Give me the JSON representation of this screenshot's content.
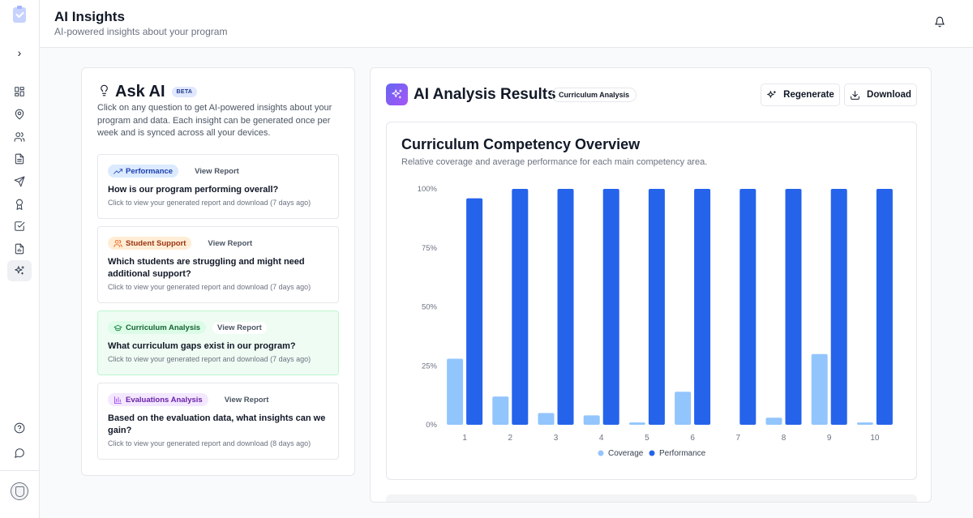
{
  "header": {
    "title": "AI Insights",
    "subtitle": "AI-powered insights about your program"
  },
  "sidebar": {
    "icons": [
      "grid-icon",
      "map-pin-icon",
      "users-icon",
      "file-text-icon",
      "send-icon",
      "award-icon",
      "check-square-icon",
      "file-chart-icon",
      "sparkles-icon"
    ],
    "active": "sparkles-icon"
  },
  "ask": {
    "title": "Ask AI",
    "badge": "BETA",
    "description": "Click on any question to get AI-powered insights about your program and data. Each insight can be generated once per week and is synced across all your devices.",
    "view_report_label": "View Report",
    "cards": [
      {
        "tag": "Performance",
        "question": "How is our program performing overall?",
        "sub": "Click to view your generated report and download (7 days ago)"
      },
      {
        "tag": "Student Support",
        "question": "Which students are struggling and might need additional support?",
        "sub": "Click to view your generated report and download (7 days ago)"
      },
      {
        "tag": "Curriculum Analysis",
        "question": "What curriculum gaps exist in our program?",
        "sub": "Click to view your generated report and download (7 days ago)"
      },
      {
        "tag": "Evaluations Analysis",
        "question": "Based on the evaluation data, what insights can we gain?",
        "sub": "Click to view your generated report and download (8 days ago)"
      }
    ]
  },
  "results": {
    "title": "AI Analysis Results",
    "badge": "Curriculum Analysis",
    "regenerate_label": "Regenerate",
    "download_label": "Download"
  },
  "chart_data": {
    "type": "bar",
    "title": "Curriculum Competency Overview",
    "subtitle": "Relative coverage and average performance for each main competency area.",
    "categories": [
      "1",
      "2",
      "3",
      "4",
      "5",
      "6",
      "7",
      "8",
      "9",
      "10"
    ],
    "series": [
      {
        "name": "Coverage",
        "color": "#93c5fd",
        "values": [
          28,
          12,
          5,
          4,
          1,
          14,
          0,
          3,
          30,
          1
        ]
      },
      {
        "name": "Performance",
        "color": "#2563eb",
        "values": [
          96,
          100,
          100,
          100,
          100,
          100,
          100,
          100,
          100,
          100
        ]
      }
    ],
    "yticks": [
      "0%",
      "25%",
      "50%",
      "75%",
      "100%"
    ],
    "ylim": [
      0,
      100
    ],
    "grid": false,
    "legend": "bottom-center"
  }
}
